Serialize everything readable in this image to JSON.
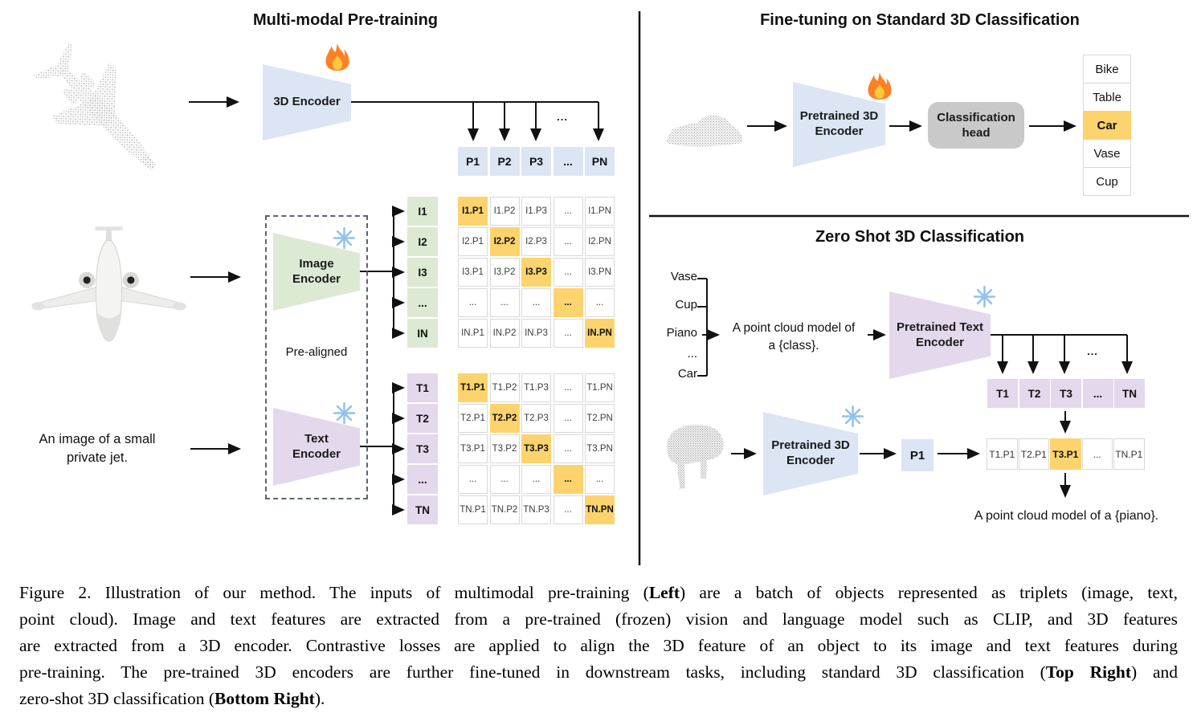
{
  "colors": {
    "encoder_blue": "#dbe5f4",
    "encoder_green": "#dcead4",
    "encoder_purple": "#e4d8ec",
    "highlight_orange": "#fcd36d",
    "head_gray": "#c9c9c9",
    "cell_border": "#d9d9d9",
    "point_cloud_gray": "#b0b0b0",
    "snowflake_blue": "#8fc3ee",
    "fire_orange": "#fc8124"
  },
  "pretraining": {
    "title": "Multi-modal Pre-training",
    "encoder_3d": {
      "label": "3D Encoder",
      "icon": "fire-icon"
    },
    "p_row": [
      "P1",
      "P2",
      "P3",
      "...",
      "PN"
    ],
    "branch_ellipsis": "...",
    "image_encoder": {
      "label": "Image Encoder",
      "icon": "snowflake-icon"
    },
    "text_encoder": {
      "label": "Text Encoder",
      "icon": "snowflake-icon"
    },
    "prealigned": "Pre-aligned",
    "image_caption": "An image of a small\nprivate jet.",
    "i_labels": [
      "I1",
      "I2",
      "I3",
      "...",
      "IN"
    ],
    "i_matrix": [
      [
        "I1.P1",
        "I1.P2",
        "I1.P3",
        "...",
        "I1.PN"
      ],
      [
        "I2.P1",
        "I2.P2",
        "I2.P3",
        "...",
        "I2.PN"
      ],
      [
        "I3.P1",
        "I3.P2",
        "I3.P3",
        "...",
        "I3.PN"
      ],
      [
        "...",
        "...",
        "...",
        "...",
        "..."
      ],
      [
        "IN.P1",
        "IN.P2",
        "IN.P3",
        "...",
        "IN.PN"
      ]
    ],
    "t_labels": [
      "T1",
      "T2",
      "T3",
      "...",
      "TN"
    ],
    "t_matrix": [
      [
        "T1.P1",
        "T1.P2",
        "T1.P3",
        "...",
        "T1.PN"
      ],
      [
        "T2.P1",
        "T2.P2",
        "T2.P3",
        "...",
        "T2.PN"
      ],
      [
        "T3.P1",
        "T3.P2",
        "T3.P3",
        "...",
        "T3.PN"
      ],
      [
        "...",
        "...",
        "...",
        "...",
        "..."
      ],
      [
        "TN.P1",
        "TN.P2",
        "TN.P3",
        "...",
        "TN.PN"
      ]
    ],
    "matrix_highlight": "diagonal"
  },
  "finetune": {
    "title": "Fine-tuning on Standard 3D Classification",
    "encoder": {
      "label": "Pretrained 3D Encoder",
      "icon": "fire-icon"
    },
    "head": {
      "label": "Classification head"
    },
    "classes": [
      "Bike",
      "Table",
      "Car",
      "Vase",
      "Cup"
    ],
    "highlight_index": 2
  },
  "zeroshot": {
    "title": "Zero Shot 3D Classification",
    "class_list": [
      "Vase",
      "Cup",
      "Piano",
      "...",
      "Car"
    ],
    "prompt": "A point cloud model of\na {class}.",
    "text_encoder": {
      "label": "Pretrained Text Encoder",
      "icon": "snowflake-icon"
    },
    "t_row": [
      "T1",
      "T2",
      "T3",
      "...",
      "TN"
    ],
    "branch_ellipsis": "...",
    "encoder_3d": {
      "label": "Pretrained 3D Encoder",
      "icon": "snowflake-icon"
    },
    "p1": "P1",
    "result_row": [
      "T1.P1",
      "T2.P1",
      "T3.P1",
      "...",
      "TN.P1"
    ],
    "result_highlight_index": 2,
    "result_caption": "A point cloud model of a {piano}."
  },
  "caption": {
    "lines": [
      [
        {
          "t": "Figure 2. Illustration of our method. The inputs of multimodal pre-training ("
        },
        {
          "t": "Left",
          "b": true
        },
        {
          "t": ") are a batch of objects represented as triplets (image, text,"
        }
      ],
      [
        {
          "t": "point cloud). Image and text features are extracted from a pre-trained (frozen) vision and language model such as CLIP, and 3D features"
        }
      ],
      [
        {
          "t": "are extracted from a 3D encoder. Contrastive losses are applied to align the 3D feature of an object to its image and text features during"
        }
      ],
      [
        {
          "t": "pre-training. The pre-trained 3D encoders are further fine-tuned in downstream tasks, including standard 3D classification ("
        },
        {
          "t": "Top Right",
          "b": true
        },
        {
          "t": ") and"
        }
      ],
      [
        {
          "t": "zero-shot 3D classification ("
        },
        {
          "t": "Bottom Right",
          "b": true
        },
        {
          "t": ")."
        }
      ]
    ]
  }
}
